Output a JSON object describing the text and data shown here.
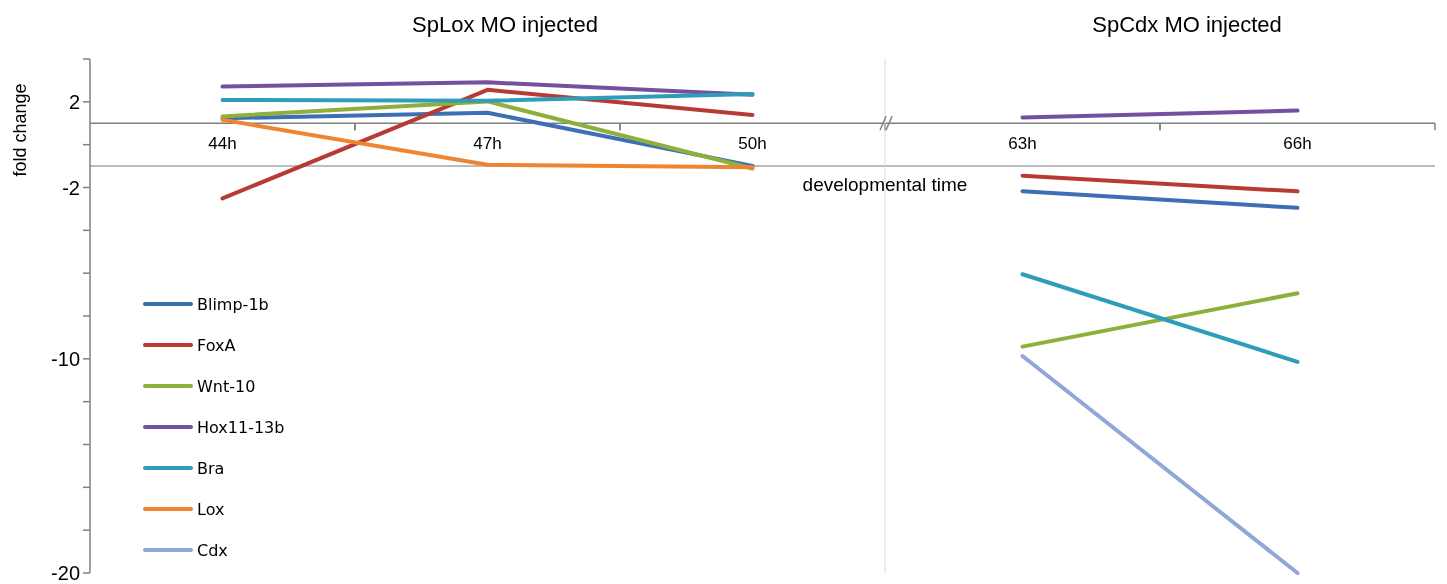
{
  "chart_data": [
    {
      "type": "line",
      "title": "SpLox MO injected",
      "ylabel": "fold change",
      "categories": [
        "44h",
        "47h",
        "50h"
      ],
      "ylim": [
        -20,
        4
      ],
      "yticks": [
        {
          "value": -20,
          "label": "-20"
        },
        {
          "value": -18,
          "label": null
        },
        {
          "value": -16,
          "label": null
        },
        {
          "value": -14,
          "label": null
        },
        {
          "value": -12,
          "label": null
        },
        {
          "value": -10,
          "label": "-10"
        },
        {
          "value": -8,
          "label": null
        },
        {
          "value": -6,
          "label": null
        },
        {
          "value": -4,
          "label": null
        },
        {
          "value": -2,
          "label": "-2"
        },
        {
          "value": 0,
          "label": null
        },
        {
          "value": 2,
          "label": "2"
        },
        {
          "value": 4,
          "label": null
        }
      ],
      "ref_lines": [
        {
          "axis": "y",
          "value": -1,
          "color": "#a6a6a6"
        }
      ],
      "legend": "bottom left",
      "grid": false,
      "series": [
        {
          "name": "Blimp-1b",
          "color": "#3d6fb6",
          "values": [
            1.23,
            1.49,
            -0.99
          ]
        },
        {
          "name": "FoxA",
          "color": "#b83a35",
          "values": [
            -2.51,
            2.56,
            1.39
          ]
        },
        {
          "name": "Wnt-10",
          "color": "#8db03c",
          "values": [
            1.32,
            2.02,
            -1.11
          ]
        },
        {
          "name": "Hox11-13b",
          "color": "#7550a0",
          "values": [
            2.72,
            2.91,
            2.33
          ]
        },
        {
          "name": "Bra",
          "color": "#2e9db8",
          "values": [
            2.09,
            2.05,
            2.37
          ]
        },
        {
          "name": "Lox",
          "color": "#ee8532",
          "values": [
            1.16,
            -0.94,
            -1.06
          ]
        },
        {
          "name": "Cdx",
          "color": "#8fa8d8",
          "values": [
            null,
            null,
            null
          ]
        }
      ]
    },
    {
      "type": "line",
      "title": "SpCdx MO injected",
      "xlabel": "developmental time",
      "categories": [
        "63h",
        "66h"
      ],
      "ylim": [
        -20,
        4
      ],
      "tick_labels": "x",
      "ref_lines": [
        {
          "axis": "y",
          "value": -1,
          "color": "#a6a6a6"
        }
      ],
      "grid": false,
      "series": [
        {
          "color": "#3d6fb6",
          "values": [
            -2.18,
            -2.95
          ]
        },
        {
          "color": "#b83a35",
          "values": [
            -1.45,
            -2.18
          ]
        },
        {
          "color": "#8db03c",
          "values": [
            -9.43,
            -6.94
          ]
        },
        {
          "color": "#7550a0",
          "values": [
            1.27,
            1.59
          ]
        },
        {
          "color": "#2e9db8",
          "values": [
            -6.05,
            -10.14
          ]
        },
        {
          "color": "#8fa8d8",
          "values": [
            -9.87,
            -20
          ]
        }
      ]
    }
  ]
}
